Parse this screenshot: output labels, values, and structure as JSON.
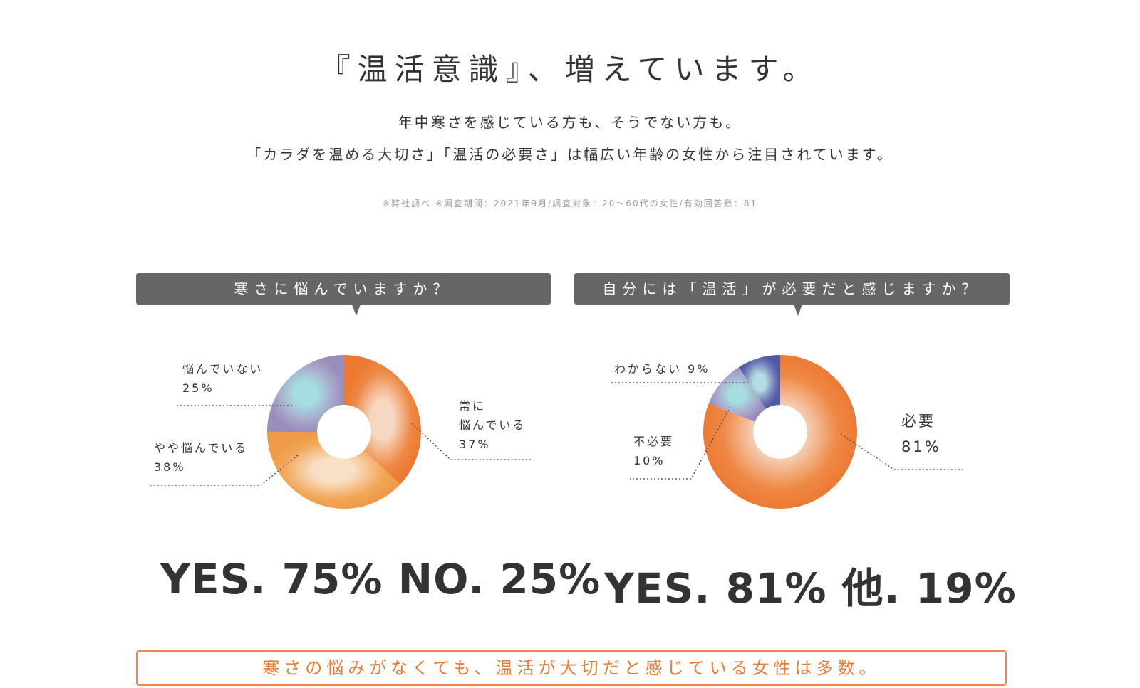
{
  "title": "『温活意識』、増えています。",
  "lead": {
    "line1": "年中寒さを感じている方も、そうでない方も。",
    "line2": "「カラダを温める大切さ」「温活の必要さ」は幅広い年齢の女性から注目されています。"
  },
  "note": "※弊社調べ ※調査期間：2021年9月/調査対象：20〜60代の女性/有効回答数：81",
  "chart_data": [
    {
      "type": "pie",
      "title": "寒さに悩んでいますか？",
      "slices": [
        {
          "name": "常に悩んでいる",
          "value": 37,
          "label_lines": [
            "常に",
            "悩んでいる",
            "37%"
          ],
          "color": "#ee8440"
        },
        {
          "name": "やや悩んでいる",
          "value": 38,
          "label_lines": [
            "やや悩んでいる",
            "38%"
          ],
          "color": "#f2a455"
        },
        {
          "name": "悩んでいない",
          "value": 25,
          "label_lines": [
            "悩んでいない",
            "25%"
          ],
          "color": "#a79ec5"
        }
      ],
      "summary": "YES. 75%  NO. 25%"
    },
    {
      "type": "pie",
      "title": "自分には「温活」が必要だと感じますか？",
      "slices": [
        {
          "name": "必要",
          "value": 81,
          "label_lines": [
            "必要",
            "81%"
          ],
          "color": "#ee8440"
        },
        {
          "name": "不必要",
          "value": 10,
          "label_lines": [
            "不必要",
            "10%"
          ],
          "color": "#a79ec5"
        },
        {
          "name": "わからない",
          "value": 9,
          "label_lines": [
            "わからない 9%"
          ],
          "color": "#5f64ac"
        }
      ],
      "summary": "YES. 81%  他. 19%"
    }
  ],
  "banner": "寒さの悩みがなくても、温活が大切だと感じている女性は多数。",
  "colors": {
    "accent": "#ee8440",
    "question_bg": "#666666",
    "banner_border": "#e98a4c"
  }
}
